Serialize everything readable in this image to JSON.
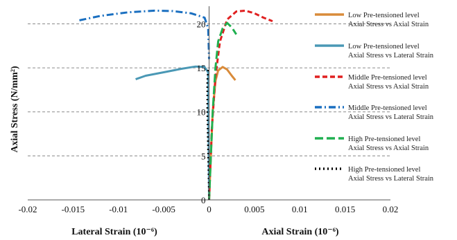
{
  "chart_data": {
    "type": "line",
    "title": "",
    "ylabel": "Axial Stress (N/mm²)",
    "xlabel_left": "Lateral Strain (10⁻⁶)",
    "xlabel_right": "Axial Strain (10⁻⁶)",
    "xlim": [
      -0.02,
      0.02
    ],
    "ylim": [
      0,
      22
    ],
    "x_ticks": [
      "-0.02",
      "-0.015",
      "-0.01",
      "-0.005",
      "0",
      "0.005",
      "0.01",
      "0.015",
      "0.02"
    ],
    "x_tick_values": [
      -0.02,
      -0.015,
      -0.01,
      -0.005,
      0,
      0.005,
      0.01,
      0.015,
      0.02
    ],
    "y_ticks": [
      "0",
      "5",
      "10",
      "15",
      "20"
    ],
    "y_tick_values": [
      0,
      5,
      10,
      15,
      20
    ],
    "grid": "horizontal dashed",
    "legend_position": "right",
    "colors": {
      "low": "#d98b3a",
      "low_lateral": "#4a98b5",
      "middle": "#e02020",
      "middle_lateral": "#1a6fc0",
      "high": "#20b050",
      "high_lateral": "#000000"
    },
    "series": [
      {
        "key": "low",
        "name_line1": "Low Pre-tensioned level",
        "name_line2": "Axial Stress vs Axial Strain",
        "dash": "solid",
        "points": [
          [
            0,
            0
          ],
          [
            0.0002,
            5
          ],
          [
            0.0004,
            10
          ],
          [
            0.0007,
            13.5
          ],
          [
            0.001,
            14.7
          ],
          [
            0.0015,
            15.1
          ],
          [
            0.002,
            14.8
          ],
          [
            0.0025,
            14.1
          ],
          [
            0.0029,
            13.6
          ]
        ]
      },
      {
        "key": "low_lateral",
        "name_line1": "Low Pre-tensioned level",
        "name_line2": "Axial Stress vs Lateral Strain",
        "dash": "solid",
        "points": [
          [
            -0.0081,
            13.7
          ],
          [
            -0.007,
            14.1
          ],
          [
            -0.005,
            14.5
          ],
          [
            -0.003,
            14.9
          ],
          [
            -0.0015,
            15.15
          ],
          [
            -0.0005,
            15.1
          ],
          [
            -0.0001,
            14.5
          ],
          [
            0,
            0
          ]
        ]
      },
      {
        "key": "middle",
        "name_line1": "Middle Pre-tensioned level",
        "name_line2": "Axial Stress vs Axial Strain",
        "dash": "dash",
        "points": [
          [
            0,
            0
          ],
          [
            0.0003,
            8
          ],
          [
            0.0007,
            14
          ],
          [
            0.0012,
            18
          ],
          [
            0.002,
            20.5
          ],
          [
            0.003,
            21.4
          ],
          [
            0.004,
            21.5
          ],
          [
            0.005,
            21.2
          ],
          [
            0.006,
            20.7
          ],
          [
            0.007,
            20.3
          ]
        ]
      },
      {
        "key": "middle_lateral",
        "name_line1": "Middle Pre-tensioned level",
        "name_line2": "Axial Stress vs Lateral Strain",
        "dash": "dashdot",
        "points": [
          [
            -0.0143,
            20.4
          ],
          [
            -0.012,
            20.9
          ],
          [
            -0.009,
            21.3
          ],
          [
            -0.006,
            21.5
          ],
          [
            -0.004,
            21.45
          ],
          [
            -0.002,
            21.2
          ],
          [
            -0.0005,
            20.7
          ],
          [
            -0.0001,
            19.5
          ],
          [
            0,
            16
          ]
        ]
      },
      {
        "key": "high",
        "name_line1": "High Pre-tensioned level",
        "name_line2": "Axial Stress vs Axial Strain",
        "dash": "longdash",
        "points": [
          [
            0,
            0
          ],
          [
            0.0002,
            5
          ],
          [
            0.0004,
            10
          ],
          [
            0.0007,
            15
          ],
          [
            0.001,
            18
          ],
          [
            0.0015,
            19.5
          ],
          [
            0.002,
            20.1
          ],
          [
            0.0025,
            19.6
          ],
          [
            0.003,
            18.8
          ]
        ]
      },
      {
        "key": "high_lateral",
        "name_line1": "High Pre-tensioned level",
        "name_line2": "Axial Stress vs Lateral Strain",
        "dash": "dot",
        "points": [
          [
            0,
            0
          ],
          [
            -0.0001,
            5
          ],
          [
            -0.0002,
            10
          ],
          [
            -0.0002,
            13.5
          ],
          [
            -0.0001,
            15
          ]
        ]
      }
    ]
  }
}
